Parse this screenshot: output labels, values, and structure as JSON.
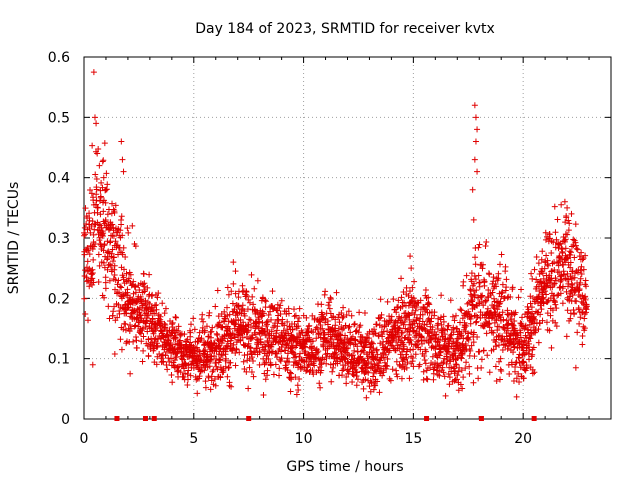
{
  "chart_data": {
    "type": "scatter",
    "title": "Day 184 of 2023, SRMTID for receiver kvtx",
    "xlabel": "GPS time / hours",
    "ylabel": "SRMTID / TECUs",
    "xlim": [
      0,
      24
    ],
    "ylim": [
      0,
      0.6
    ],
    "x_ticks": [
      0,
      5,
      10,
      15,
      20
    ],
    "y_ticks": [
      0,
      0.1,
      0.2,
      0.3,
      0.4,
      0.5,
      0.6
    ],
    "x_tick_labels": [
      "0",
      "5",
      "10",
      "15",
      "20"
    ],
    "y_tick_labels": [
      "0",
      "0.1",
      "0.2",
      "0.3",
      "0.4",
      "0.5",
      "0.6"
    ],
    "grid": true,
    "marker": "+",
    "color": "#e00000",
    "gap_markers_x": [
      1.5,
      2.8,
      3.2,
      7.5,
      15.6,
      18.1,
      20.5
    ],
    "profile": [
      {
        "x": 0.0,
        "center": 0.25,
        "spread": 0.06
      },
      {
        "x": 0.5,
        "center": 0.32,
        "spread": 0.09
      },
      {
        "x": 1.0,
        "center": 0.3,
        "spread": 0.08
      },
      {
        "x": 1.5,
        "center": 0.27,
        "spread": 0.08
      },
      {
        "x": 2.0,
        "center": 0.2,
        "spread": 0.06
      },
      {
        "x": 3.0,
        "center": 0.16,
        "spread": 0.04
      },
      {
        "x": 4.0,
        "center": 0.12,
        "spread": 0.03
      },
      {
        "x": 5.0,
        "center": 0.1,
        "spread": 0.03
      },
      {
        "x": 6.0,
        "center": 0.12,
        "spread": 0.04
      },
      {
        "x": 7.0,
        "center": 0.15,
        "spread": 0.05
      },
      {
        "x": 8.0,
        "center": 0.14,
        "spread": 0.05
      },
      {
        "x": 9.0,
        "center": 0.13,
        "spread": 0.04
      },
      {
        "x": 10.0,
        "center": 0.11,
        "spread": 0.04
      },
      {
        "x": 11.0,
        "center": 0.14,
        "spread": 0.04
      },
      {
        "x": 12.0,
        "center": 0.12,
        "spread": 0.04
      },
      {
        "x": 13.0,
        "center": 0.1,
        "spread": 0.04
      },
      {
        "x": 14.0,
        "center": 0.13,
        "spread": 0.04
      },
      {
        "x": 15.0,
        "center": 0.16,
        "spread": 0.05
      },
      {
        "x": 16.0,
        "center": 0.13,
        "spread": 0.04
      },
      {
        "x": 17.0,
        "center": 0.11,
        "spread": 0.04
      },
      {
        "x": 18.0,
        "center": 0.2,
        "spread": 0.07
      },
      {
        "x": 19.0,
        "center": 0.17,
        "spread": 0.05
      },
      {
        "x": 20.0,
        "center": 0.12,
        "spread": 0.04
      },
      {
        "x": 21.0,
        "center": 0.22,
        "spread": 0.06
      },
      {
        "x": 22.0,
        "center": 0.26,
        "spread": 0.06
      },
      {
        "x": 22.9,
        "center": 0.18,
        "spread": 0.05
      }
    ],
    "spikes": [
      {
        "x": 0.45,
        "y": 0.575
      },
      {
        "x": 0.5,
        "y": 0.5
      },
      {
        "x": 0.55,
        "y": 0.49
      },
      {
        "x": 0.6,
        "y": 0.44
      },
      {
        "x": 0.7,
        "y": 0.42
      },
      {
        "x": 0.9,
        "y": 0.4
      },
      {
        "x": 1.0,
        "y": 0.38
      },
      {
        "x": 1.7,
        "y": 0.46
      },
      {
        "x": 1.75,
        "y": 0.43
      },
      {
        "x": 1.8,
        "y": 0.41
      },
      {
        "x": 2.2,
        "y": 0.32
      },
      {
        "x": 2.3,
        "y": 0.29
      },
      {
        "x": 17.8,
        "y": 0.52
      },
      {
        "x": 17.85,
        "y": 0.5
      },
      {
        "x": 17.9,
        "y": 0.48
      },
      {
        "x": 17.85,
        "y": 0.46
      },
      {
        "x": 17.8,
        "y": 0.43
      },
      {
        "x": 17.9,
        "y": 0.41
      },
      {
        "x": 17.7,
        "y": 0.38
      },
      {
        "x": 17.75,
        "y": 0.33
      },
      {
        "x": 14.85,
        "y": 0.27
      },
      {
        "x": 14.9,
        "y": 0.25
      },
      {
        "x": 6.8,
        "y": 0.26
      },
      {
        "x": 6.9,
        "y": 0.245
      },
      {
        "x": 21.9,
        "y": 0.36
      },
      {
        "x": 22.0,
        "y": 0.35
      },
      {
        "x": 22.2,
        "y": 0.34
      },
      {
        "x": 0.4,
        "y": 0.09
      },
      {
        "x": 2.1,
        "y": 0.075
      },
      {
        "x": 22.4,
        "y": 0.085
      }
    ]
  }
}
